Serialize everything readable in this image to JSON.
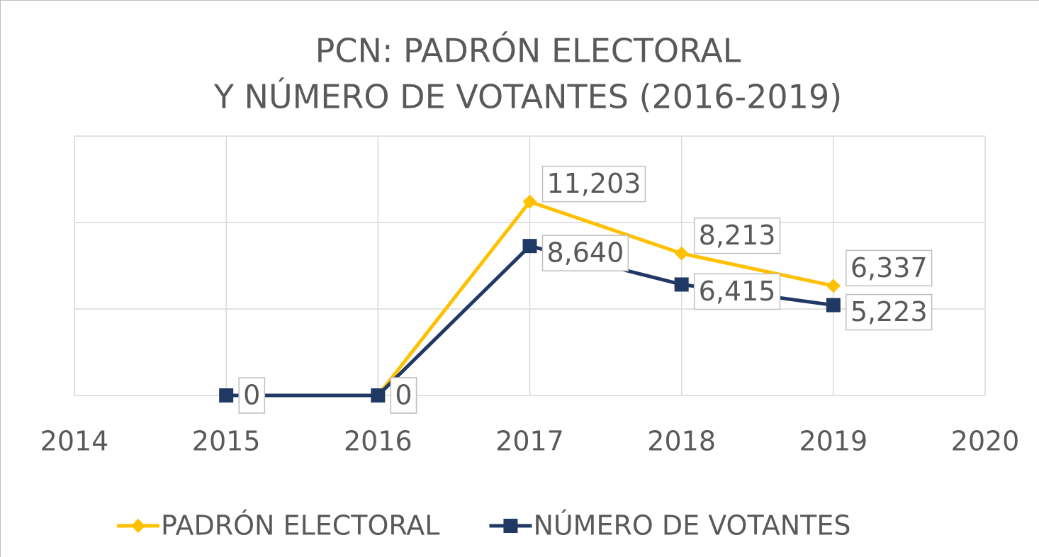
{
  "chart_data": {
    "type": "line",
    "title": "PCN: PADRÓN ELECTORAL",
    "subtitle": "Y NÚMERO DE VOTANTES (2016-2019)",
    "x": [
      2015,
      2016,
      2017,
      2018,
      2019
    ],
    "series": [
      {
        "name": "PADRÓN ELECTORAL",
        "color": "#ffc000",
        "marker": "diamond",
        "values": [
          null,
          0,
          11203,
          8213,
          6337
        ],
        "value_labels": [
          null,
          "0",
          "11,203",
          "8,213",
          "6,337"
        ]
      },
      {
        "name": "NÚMERO DE VOTANTES",
        "color": "#1f3864",
        "marker": "square",
        "values": [
          0,
          0,
          8640,
          6415,
          5223
        ],
        "value_labels": [
          "0",
          "0",
          "8,640",
          "6,415",
          "5,223"
        ]
      }
    ],
    "xlim": [
      2014,
      2020
    ],
    "xticks": [
      2014,
      2015,
      2016,
      2017,
      2018,
      2019,
      2020
    ],
    "ylim": [
      0,
      15000
    ],
    "yticks": [
      0,
      5000,
      10000,
      15000
    ],
    "grid": true,
    "legend": "bottom"
  }
}
